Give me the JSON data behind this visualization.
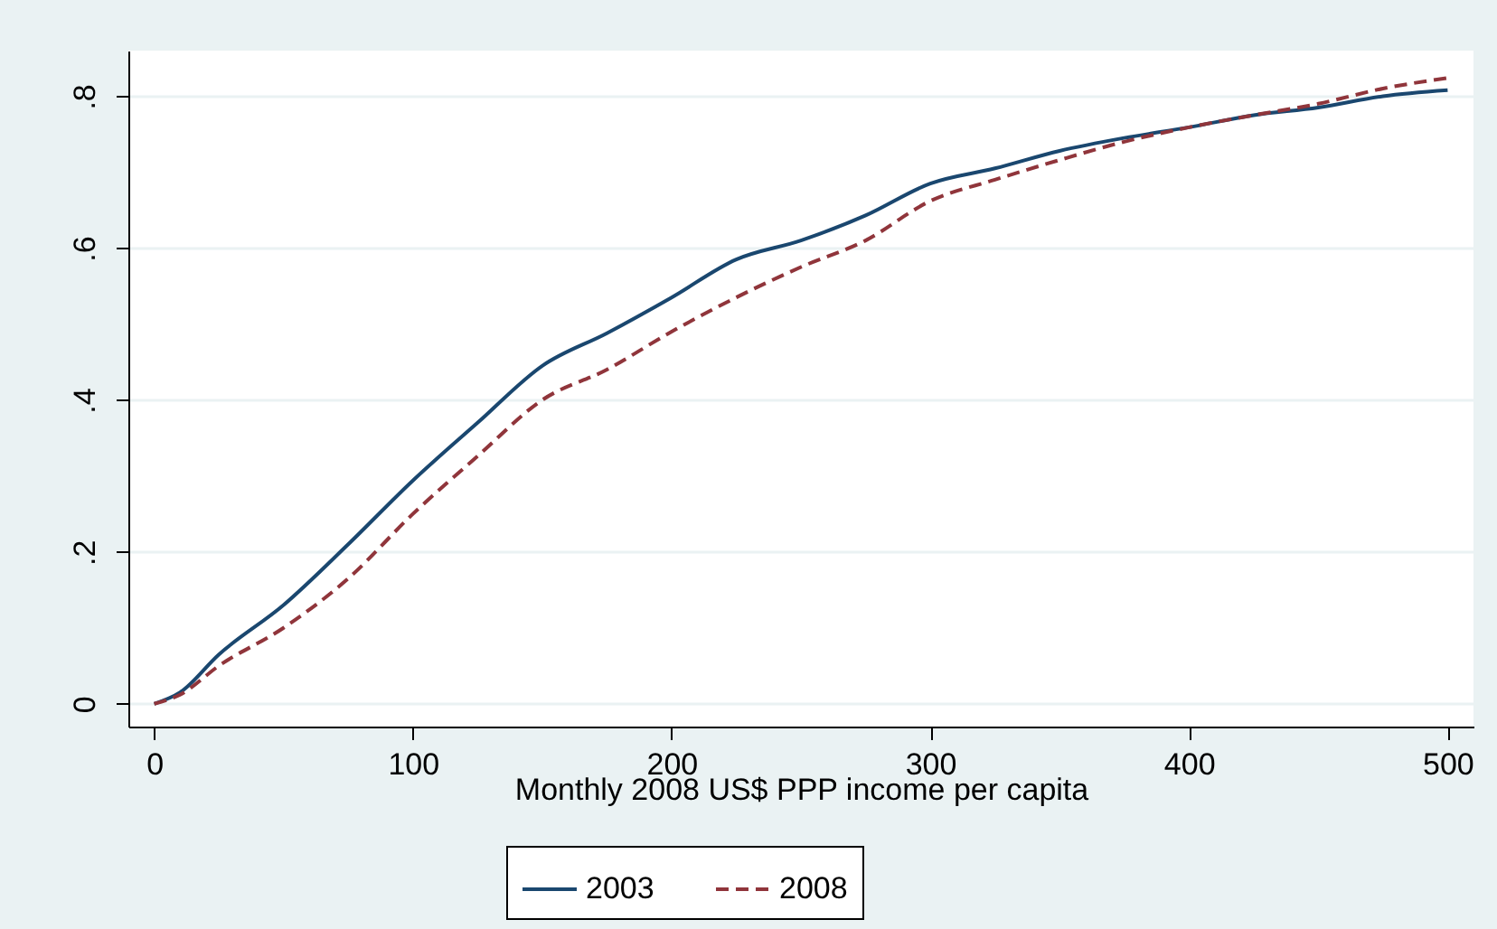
{
  "chart_data": {
    "type": "line",
    "xlabel": "Monthly 2008 US$ PPP income per capita",
    "x": [
      0,
      10,
      25,
      50,
      75,
      100,
      125,
      150,
      175,
      200,
      225,
      250,
      275,
      300,
      325,
      350,
      375,
      400,
      425,
      450,
      475,
      500
    ],
    "series": [
      {
        "name": "2003",
        "color": "#1a476f",
        "line_style": "solid",
        "values": [
          0,
          0.015,
          0.065,
          0.13,
          0.21,
          0.294,
          0.37,
          0.445,
          0.488,
          0.535,
          0.585,
          0.61,
          0.643,
          0.685,
          0.705,
          0.728,
          0.745,
          0.759,
          0.775,
          0.785,
          0.8,
          0.808
        ]
      },
      {
        "name": "2008",
        "color": "#90353b",
        "line_style": "dashed",
        "values": [
          0,
          0.012,
          0.05,
          0.1,
          0.165,
          0.25,
          0.326,
          0.4,
          0.44,
          0.49,
          0.535,
          0.575,
          0.61,
          0.662,
          0.69,
          0.716,
          0.74,
          0.759,
          0.775,
          0.79,
          0.81,
          0.824
        ]
      }
    ],
    "xlim": [
      -10,
      510
    ],
    "ylim": [
      -0.03,
      0.86
    ],
    "xticks": [
      0,
      100,
      200,
      300,
      400,
      500
    ],
    "yticks": [
      {
        "value": 0,
        "label": "0"
      },
      {
        "value": 0.2,
        "label": ".2"
      },
      {
        "value": 0.4,
        "label": ".4"
      },
      {
        "value": 0.6,
        "label": ".6"
      },
      {
        "value": 0.8,
        "label": ".8"
      }
    ],
    "grid": "y",
    "legend": "bottom"
  }
}
